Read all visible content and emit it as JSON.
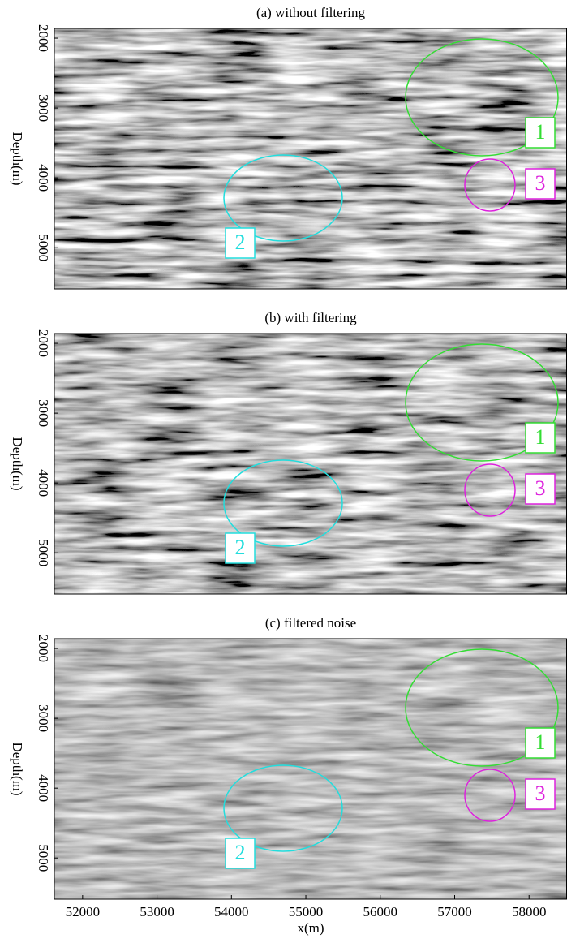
{
  "chart_data": [
    {
      "type": "image",
      "title": "(a) without filtering",
      "ylabel": "Depth(m)",
      "xlim": [
        51620,
        58510
      ],
      "ylim": [
        1860,
        5590
      ],
      "y_reversed": true,
      "yticks": [
        2000,
        3000,
        4000,
        5000
      ],
      "contrast": 2.6,
      "seed": 3,
      "annotations": [
        {
          "label": "1",
          "color": "#33dd33"
        },
        {
          "label": "2",
          "color": "#22dddd"
        },
        {
          "label": "3",
          "color": "#dd22dd"
        }
      ]
    },
    {
      "type": "image",
      "title": "(b) with filtering",
      "ylabel": "Depth(m)",
      "xlim": [
        51620,
        58510
      ],
      "ylim": [
        1860,
        5590
      ],
      "y_reversed": true,
      "yticks": [
        2000,
        3000,
        4000,
        5000
      ],
      "contrast": 2.4,
      "seed": 7,
      "annotations": [
        {
          "label": "1",
          "color": "#33dd33"
        },
        {
          "label": "2",
          "color": "#22dddd"
        },
        {
          "label": "3",
          "color": "#dd22dd"
        }
      ]
    },
    {
      "type": "image",
      "title": "(c) filtered noise",
      "ylabel": "Depth(m)",
      "xlabel": "x(m)",
      "xlim": [
        51620,
        58510
      ],
      "ylim": [
        1860,
        5590
      ],
      "y_reversed": true,
      "yticks": [
        2000,
        3000,
        4000,
        5000
      ],
      "xticks": [
        52000,
        53000,
        54000,
        55000,
        56000,
        57000,
        58000
      ],
      "contrast": 1.3,
      "seed": 11,
      "annotations": [
        {
          "label": "1",
          "color": "#33dd33"
        },
        {
          "label": "2",
          "color": "#22dddd"
        },
        {
          "label": "3",
          "color": "#dd22dd"
        }
      ]
    }
  ]
}
